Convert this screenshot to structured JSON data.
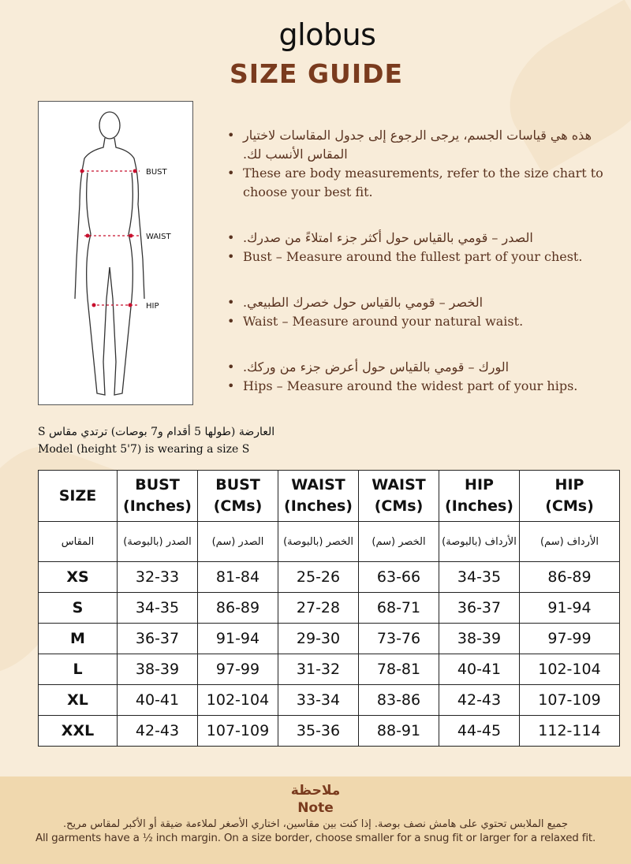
{
  "brand": "globus",
  "title": "SIZE GUIDE",
  "figure": {
    "labels": {
      "bust": "BUST",
      "waist": "WAIST",
      "hip": "HIP"
    }
  },
  "bullets": [
    {
      "ar": "هذه هي قياسات الجسم، يرجى الرجوع إلى جدول المقاسات لاختيار المقاس الأنسب لك.",
      "en": "These are body measurements, refer to the size chart to choose your best fit."
    },
    {
      "ar": "الصدر – قومي بالقياس حول أكثر جزء امتلاءً من صدرك.",
      "en": "Bust – Measure around the fullest part of your chest."
    },
    {
      "ar": "الخصر – قومي بالقياس حول خصرك الطبيعي.",
      "en": "Waist – Measure around your natural waist."
    },
    {
      "ar": "الورك – قومي بالقياس حول أعرض جزء من وركك.",
      "en": "Hips – Measure around the widest part of your hips."
    }
  ],
  "model": {
    "ar": "العارضة (طولها 5 أقدام و7 بوصات) ترتدي مقاس S",
    "en": "Model (height 5'7) is wearing a size S"
  },
  "table": {
    "headers": [
      [
        "SIZE",
        ""
      ],
      [
        "BUST",
        "(Inches)"
      ],
      [
        "BUST",
        "(CMs)"
      ],
      [
        "WAIST",
        "(Inches)"
      ],
      [
        "WAIST",
        "(CMs)"
      ],
      [
        "HIP",
        "(Inches)"
      ],
      [
        "HIP",
        "(CMs)"
      ]
    ],
    "headers_ar": [
      "المقاس",
      "الصدر (بالبوصة)",
      "الصدر (سم)",
      "الخصر (بالبوصة)",
      "الخصر (سم)",
      "الأرداف (بالبوصة)",
      "الأرداف (سم)"
    ],
    "rows": [
      [
        "XS",
        "32-33",
        "81-84",
        "25-26",
        "63-66",
        "34-35",
        "86-89"
      ],
      [
        "S",
        "34-35",
        "86-89",
        "27-28",
        "68-71",
        "36-37",
        "91-94"
      ],
      [
        "M",
        "36-37",
        "91-94",
        "29-30",
        "73-76",
        "38-39",
        "97-99"
      ],
      [
        "L",
        "38-39",
        "97-99",
        "31-32",
        "78-81",
        "40-41",
        "102-104"
      ],
      [
        "XL",
        "40-41",
        "102-104",
        "33-34",
        "83-86",
        "42-43",
        "107-109"
      ],
      [
        "XXL",
        "42-43",
        "107-109",
        "35-36",
        "88-91",
        "44-45",
        "112-114"
      ]
    ]
  },
  "note": {
    "title_ar": "ملاحظة",
    "title_en": "Note",
    "text_ar": "جميع الملابس تحتوي على هامش نصف بوصة. إذا كنت بين مقاسين، اختاري الأصغر لملاءمة ضيقة أو الأكبر لمقاس مريح.",
    "text_en": "All garments have a ½ inch margin. On a size border, choose smaller for a snug fit or larger for a relaxed fit."
  },
  "colors": {
    "accent": "#7a3b1e",
    "background": "#f8ecd9",
    "footer": "#f0d8ae",
    "measure_line": "#c8102e"
  }
}
